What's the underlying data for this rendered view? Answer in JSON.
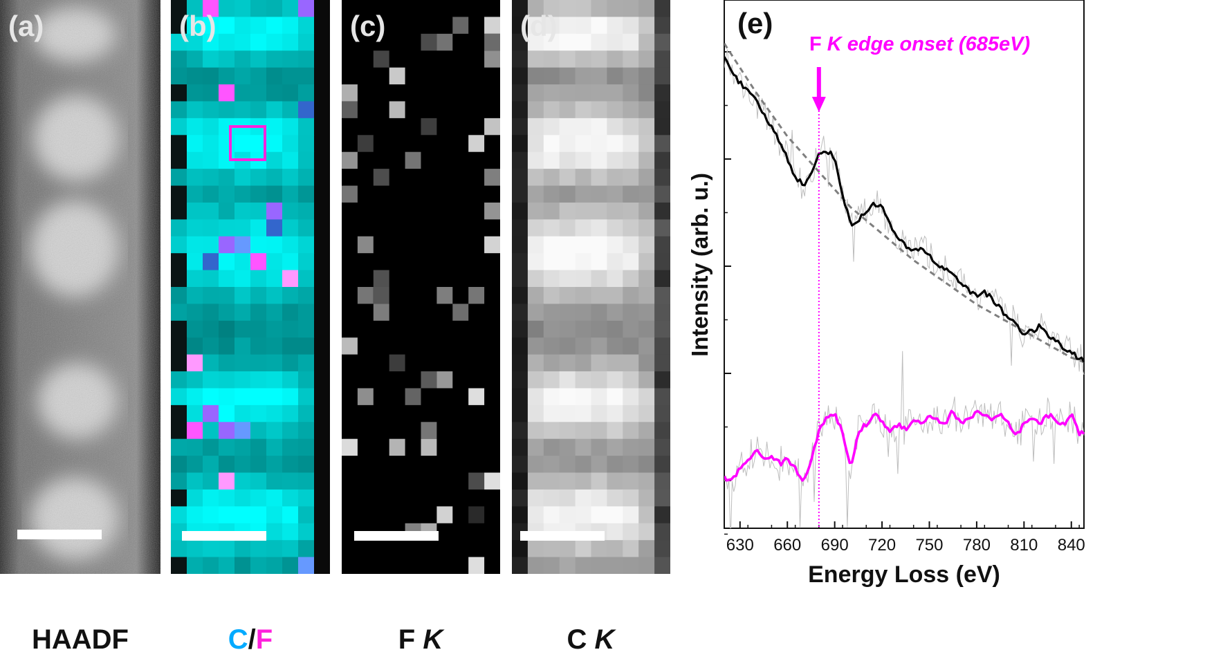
{
  "panels": [
    {
      "label": "(a)",
      "caption": "HAADF"
    },
    {
      "label": "(b)",
      "caption_c": "C",
      "caption_sep": "/",
      "caption_f": "F"
    },
    {
      "label": "(c)",
      "caption_main": "F ",
      "caption_italic": "K"
    },
    {
      "label": "(d)",
      "caption_main": "C ",
      "caption_italic": "K"
    }
  ],
  "colors": {
    "carbon": "#00e5ff",
    "fluorine": "#ff33ff",
    "raw_spectrum": "#bdbdbd",
    "smoothed_spectrum": "#000000",
    "background_fit": "#7f7f7f",
    "f_signal": "#ff00ff"
  },
  "chart_data": {
    "type": "line",
    "label": "(e)",
    "annotation": {
      "text_prefix": "F ",
      "text_italic": "K edge onset (685eV)",
      "x": 680
    },
    "xlabel": "Energy Loss (eV)",
    "ylabel": "Intensity (arb. u.)",
    "xlim": [
      620,
      848
    ],
    "x_ticks": [
      630,
      660,
      690,
      720,
      750,
      780,
      810,
      840
    ],
    "series": [
      {
        "key": "spectrum",
        "x": [
          620,
          625,
          630,
          635,
          640,
          645,
          650,
          655,
          660,
          665,
          670,
          675,
          680,
          685,
          690,
          695,
          700,
          705,
          710,
          715,
          720,
          725,
          730,
          735,
          740,
          745,
          750,
          755,
          760,
          765,
          770,
          775,
          780,
          785,
          790,
          795,
          800,
          805,
          810,
          815,
          820,
          825,
          830,
          835,
          840,
          845,
          848
        ],
        "y": [
          0.95,
          0.92,
          0.89,
          0.87,
          0.85,
          0.82,
          0.79,
          0.76,
          0.72,
          0.68,
          0.66,
          0.68,
          0.73,
          0.74,
          0.72,
          0.64,
          0.57,
          0.58,
          0.6,
          0.62,
          0.61,
          0.57,
          0.54,
          0.52,
          0.51,
          0.52,
          0.5,
          0.48,
          0.47,
          0.46,
          0.44,
          0.42,
          0.41,
          0.42,
          0.4,
          0.38,
          0.36,
          0.35,
          0.32,
          0.33,
          0.34,
          0.32,
          0.31,
          0.29,
          0.28,
          0.27,
          0.26
        ]
      },
      {
        "key": "background",
        "x": [
          620,
          640,
          660,
          680,
          700,
          720,
          740,
          760,
          780,
          800,
          820,
          840,
          848
        ],
        "y": [
          0.98,
          0.87,
          0.77,
          0.69,
          0.61,
          0.55,
          0.49,
          0.44,
          0.39,
          0.35,
          0.31,
          0.27,
          0.26
        ]
      },
      {
        "key": "f_edge",
        "x": [
          620,
          625,
          630,
          635,
          640,
          645,
          650,
          655,
          660,
          665,
          670,
          675,
          680,
          685,
          690,
          695,
          700,
          705,
          710,
          715,
          720,
          725,
          730,
          735,
          740,
          745,
          750,
          755,
          760,
          765,
          770,
          775,
          780,
          785,
          790,
          795,
          800,
          805,
          810,
          815,
          820,
          825,
          830,
          835,
          840,
          845,
          848
        ],
        "y": [
          0.0,
          -0.01,
          0.02,
          0.04,
          0.06,
          0.04,
          0.05,
          0.03,
          0.04,
          0.02,
          -0.01,
          0.04,
          0.1,
          0.14,
          0.14,
          0.1,
          0.02,
          0.1,
          0.12,
          0.14,
          0.13,
          0.1,
          0.12,
          0.11,
          0.13,
          0.12,
          0.14,
          0.13,
          0.12,
          0.15,
          0.12,
          0.13,
          0.15,
          0.14,
          0.13,
          0.14,
          0.12,
          0.09,
          0.12,
          0.13,
          0.12,
          0.14,
          0.13,
          0.12,
          0.14,
          0.1,
          0.1
        ]
      }
    ]
  }
}
